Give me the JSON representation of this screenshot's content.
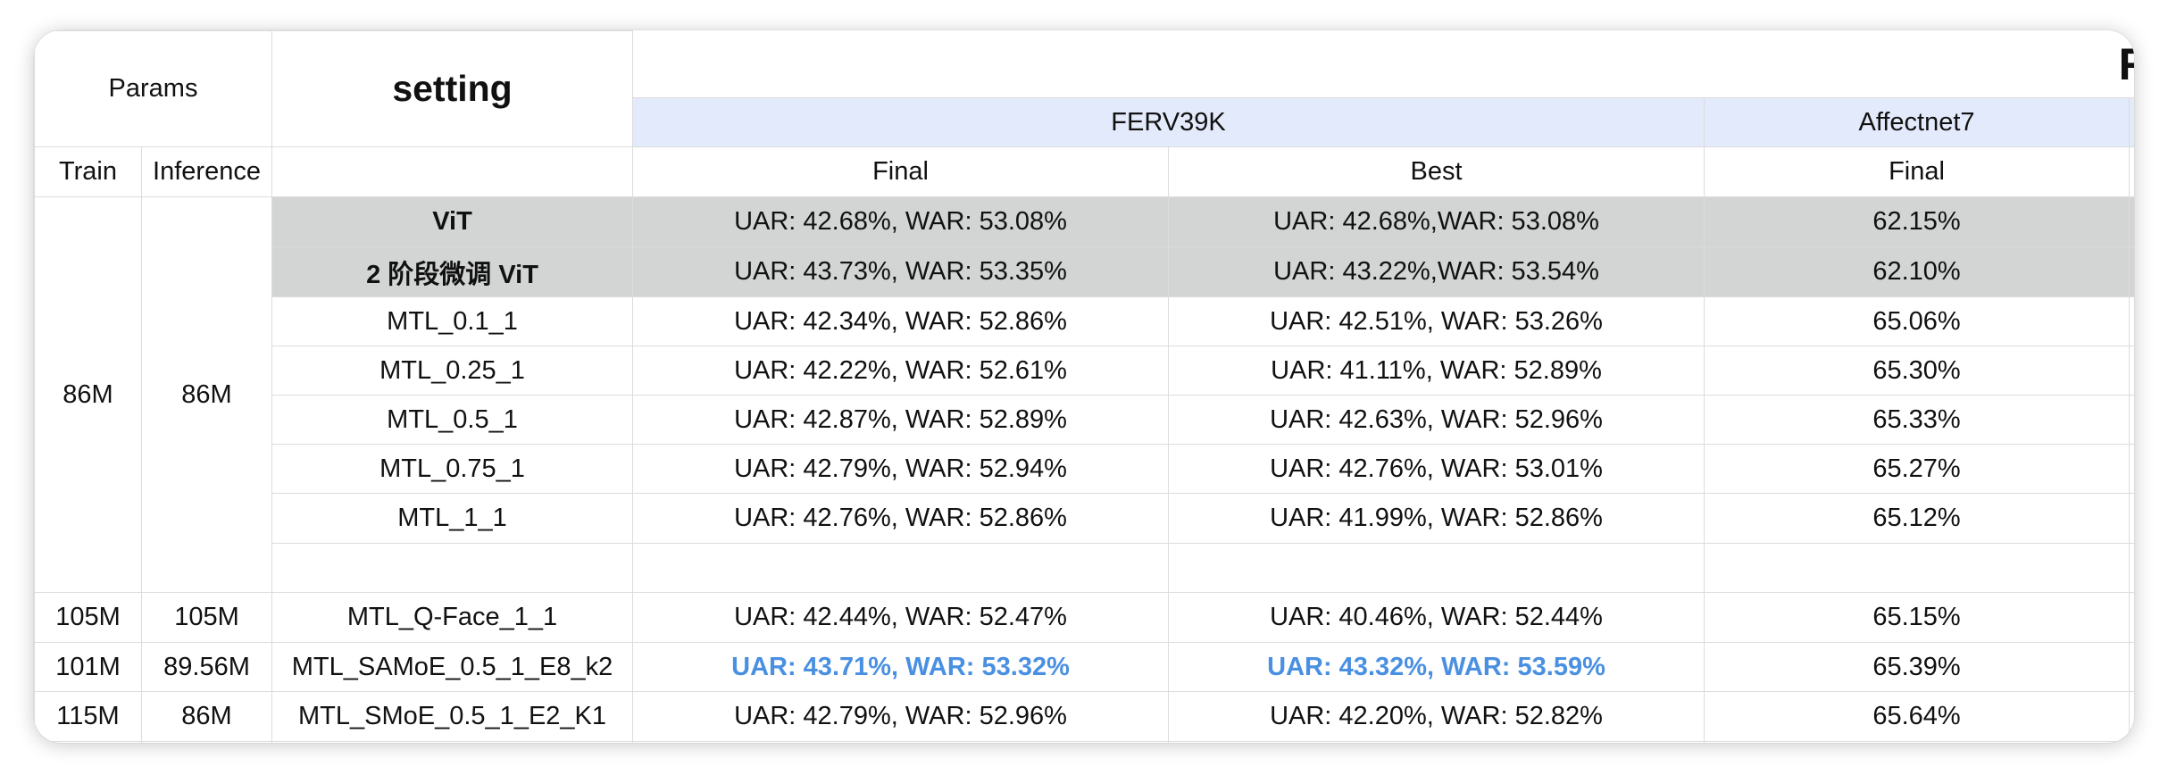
{
  "header": {
    "params": "Params",
    "setting": "setting",
    "results_title_partial": "Re",
    "dataset_ferv": "FERV39K",
    "dataset_affect": "Affectnet7",
    "train": "Train",
    "inference": "Inference",
    "final": "Final",
    "best": "Best",
    "affect_final": "Final"
  },
  "group_86m": {
    "train": "86M",
    "inference": "86M"
  },
  "rows": [
    {
      "setting": "ViT",
      "ferv_final": "UAR: 42.68%, WAR: 53.08%",
      "ferv_best": "UAR: 42.68%,WAR: 53.08%",
      "affect_final": "62.15%"
    },
    {
      "setting": "2 阶段微调 ViT",
      "ferv_final": "UAR: 43.73%, WAR: 53.35%",
      "ferv_best": "UAR: 43.22%,WAR: 53.54%",
      "affect_final": "62.10%"
    },
    {
      "setting": "MTL_0.1_1",
      "ferv_final": "UAR: 42.34%, WAR: 52.86%",
      "ferv_best": "UAR: 42.51%, WAR: 53.26%",
      "affect_final": "65.06%"
    },
    {
      "setting": "MTL_0.25_1",
      "ferv_final": "UAR: 42.22%, WAR: 52.61%",
      "ferv_best": "UAR: 41.11%, WAR: 52.89%",
      "affect_final": "65.30%"
    },
    {
      "setting": "MTL_0.5_1",
      "ferv_final": "UAR: 42.87%, WAR: 52.89%",
      "ferv_best": "UAR: 42.63%, WAR: 52.96%",
      "affect_final": "65.33%"
    },
    {
      "setting": "MTL_0.75_1",
      "ferv_final": "UAR: 42.79%, WAR: 52.94%",
      "ferv_best": "UAR: 42.76%, WAR: 53.01%",
      "affect_final": "65.27%"
    },
    {
      "setting": "MTL_1_1",
      "ferv_final": "UAR: 42.76%, WAR: 52.86%",
      "ferv_best": "UAR: 41.99%, WAR: 52.86%",
      "affect_final": "65.12%"
    },
    {
      "train": "105M",
      "inference": "105M",
      "setting": "MTL_Q-Face_1_1",
      "ferv_final": "UAR: 42.44%, WAR: 52.47%",
      "ferv_best": "UAR: 40.46%, WAR: 52.44%",
      "affect_final": "65.15%"
    },
    {
      "train": "101M",
      "inference": "89.56M",
      "setting": "MTL_SAMoE_0.5_1_E8_k2",
      "ferv_final": "UAR: 43.71%, WAR: 53.32%",
      "ferv_best": "UAR: 43.32%, WAR: 53.59%",
      "affect_final": "65.39%"
    },
    {
      "train": "115M",
      "inference": "86M",
      "setting": "MTL_SMoE_0.5_1_E2_K1",
      "ferv_final": "UAR: 42.79%, WAR: 52.96%",
      "ferv_best": "UAR: 42.20%, WAR: 52.82%",
      "affect_final": "65.64%"
    }
  ],
  "colors": {
    "highlight_text": "#4a90e2",
    "header_band": "#e3eafb",
    "gray_row": "#d3d4d4",
    "grid": "#dcdcdc"
  }
}
